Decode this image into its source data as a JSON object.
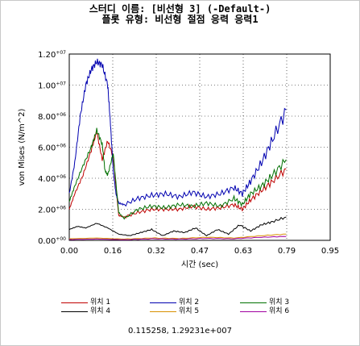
{
  "title_line1": "스터디 이름: [비선형 3] (-Default-)",
  "title_line2": "플롯 유형: 비선형 절점 응력 응력1",
  "readout": "0.115258, 1.29231e+007",
  "chart_data": {
    "type": "line",
    "xlabel": "시간 (sec)",
    "ylabel": "von Mises (N/m^2)",
    "xlim": [
      0,
      0.95
    ],
    "ylim": [
      0,
      12000000
    ],
    "grid": true,
    "legend_position": "bottom",
    "x_ticks": [
      "0.00",
      "0.16",
      "0.32",
      "0.47",
      "0.63",
      "0.79",
      "0.95"
    ],
    "y_ticks": [
      {
        "mant": "0.00",
        "exp": "+00"
      },
      {
        "mant": "2.00",
        "exp": "+06"
      },
      {
        "mant": "4.00",
        "exp": "+06"
      },
      {
        "mant": "6.00",
        "exp": "+06"
      },
      {
        "mant": "8.00",
        "exp": "+06"
      },
      {
        "mant": "1.00",
        "exp": "+07"
      },
      {
        "mant": "1.20",
        "exp": "+07"
      }
    ],
    "series": [
      {
        "name": "위치 1",
        "color": "#c00000",
        "x": [
          0.0,
          0.02,
          0.05,
          0.08,
          0.1,
          0.12,
          0.14,
          0.16,
          0.18,
          0.2,
          0.25,
          0.3,
          0.35,
          0.4,
          0.45,
          0.5,
          0.55,
          0.6,
          0.63,
          0.66,
          0.7,
          0.74,
          0.79
        ],
        "y": [
          2000000,
          3000000,
          4200000,
          5800000,
          7000000,
          5200000,
          6400000,
          5400000,
          1600000,
          1500000,
          1800000,
          2000000,
          2000000,
          2000000,
          2200000,
          2000000,
          2100000,
          2300000,
          2000000,
          2600000,
          3200000,
          3800000,
          4600000
        ]
      },
      {
        "name": "위치 2",
        "color": "#0000b0",
        "x": [
          0.0,
          0.02,
          0.04,
          0.06,
          0.08,
          0.1,
          0.12,
          0.14,
          0.15,
          0.16,
          0.17,
          0.18,
          0.2,
          0.25,
          0.3,
          0.35,
          0.4,
          0.45,
          0.5,
          0.55,
          0.6,
          0.63,
          0.66,
          0.7,
          0.74,
          0.79
        ],
        "y": [
          3000000,
          5000000,
          8000000,
          10000000,
          11000000,
          11500000,
          11300000,
          10000000,
          7500000,
          4500000,
          3000000,
          2400000,
          2300000,
          2700000,
          2900000,
          3000000,
          2800000,
          3100000,
          2800000,
          3000000,
          3400000,
          3000000,
          3800000,
          5000000,
          6500000,
          8400000
        ]
      },
      {
        "name": "위치 3",
        "color": "#007000",
        "x": [
          0.0,
          0.02,
          0.05,
          0.08,
          0.1,
          0.12,
          0.13,
          0.14,
          0.16,
          0.18,
          0.2,
          0.25,
          0.3,
          0.35,
          0.4,
          0.45,
          0.5,
          0.55,
          0.6,
          0.63,
          0.66,
          0.7,
          0.74,
          0.79
        ],
        "y": [
          2500000,
          3500000,
          4800000,
          6000000,
          7100000,
          6200000,
          4500000,
          4200000,
          5600000,
          1800000,
          1400000,
          2000000,
          2200000,
          2100000,
          2300000,
          2200000,
          2400000,
          2200000,
          2700000,
          2300000,
          3000000,
          3500000,
          4200000,
          5200000
        ]
      },
      {
        "name": "위치 4",
        "color": "#000000",
        "x": [
          0.0,
          0.03,
          0.06,
          0.1,
          0.14,
          0.18,
          0.22,
          0.26,
          0.3,
          0.34,
          0.38,
          0.42,
          0.46,
          0.5,
          0.54,
          0.58,
          0.62,
          0.66,
          0.7,
          0.74,
          0.79
        ],
        "y": [
          700000,
          900000,
          800000,
          1100000,
          800000,
          400000,
          300000,
          500000,
          700000,
          300000,
          600000,
          500000,
          800000,
          300000,
          700000,
          400000,
          1000000,
          600000,
          1000000,
          1200000,
          1500000
        ]
      },
      {
        "name": "위치 5",
        "color": "#d89000",
        "x": [
          0.0,
          0.1,
          0.2,
          0.3,
          0.4,
          0.5,
          0.6,
          0.7,
          0.79
        ],
        "y": [
          100000,
          150000,
          80000,
          150000,
          120000,
          200000,
          150000,
          300000,
          400000
        ]
      },
      {
        "name": "위치 6",
        "color": "#a000a0",
        "x": [
          0.0,
          0.1,
          0.2,
          0.3,
          0.4,
          0.5,
          0.6,
          0.7,
          0.79
        ],
        "y": [
          50000,
          80000,
          40000,
          100000,
          80000,
          120000,
          100000,
          200000,
          250000
        ]
      }
    ]
  }
}
